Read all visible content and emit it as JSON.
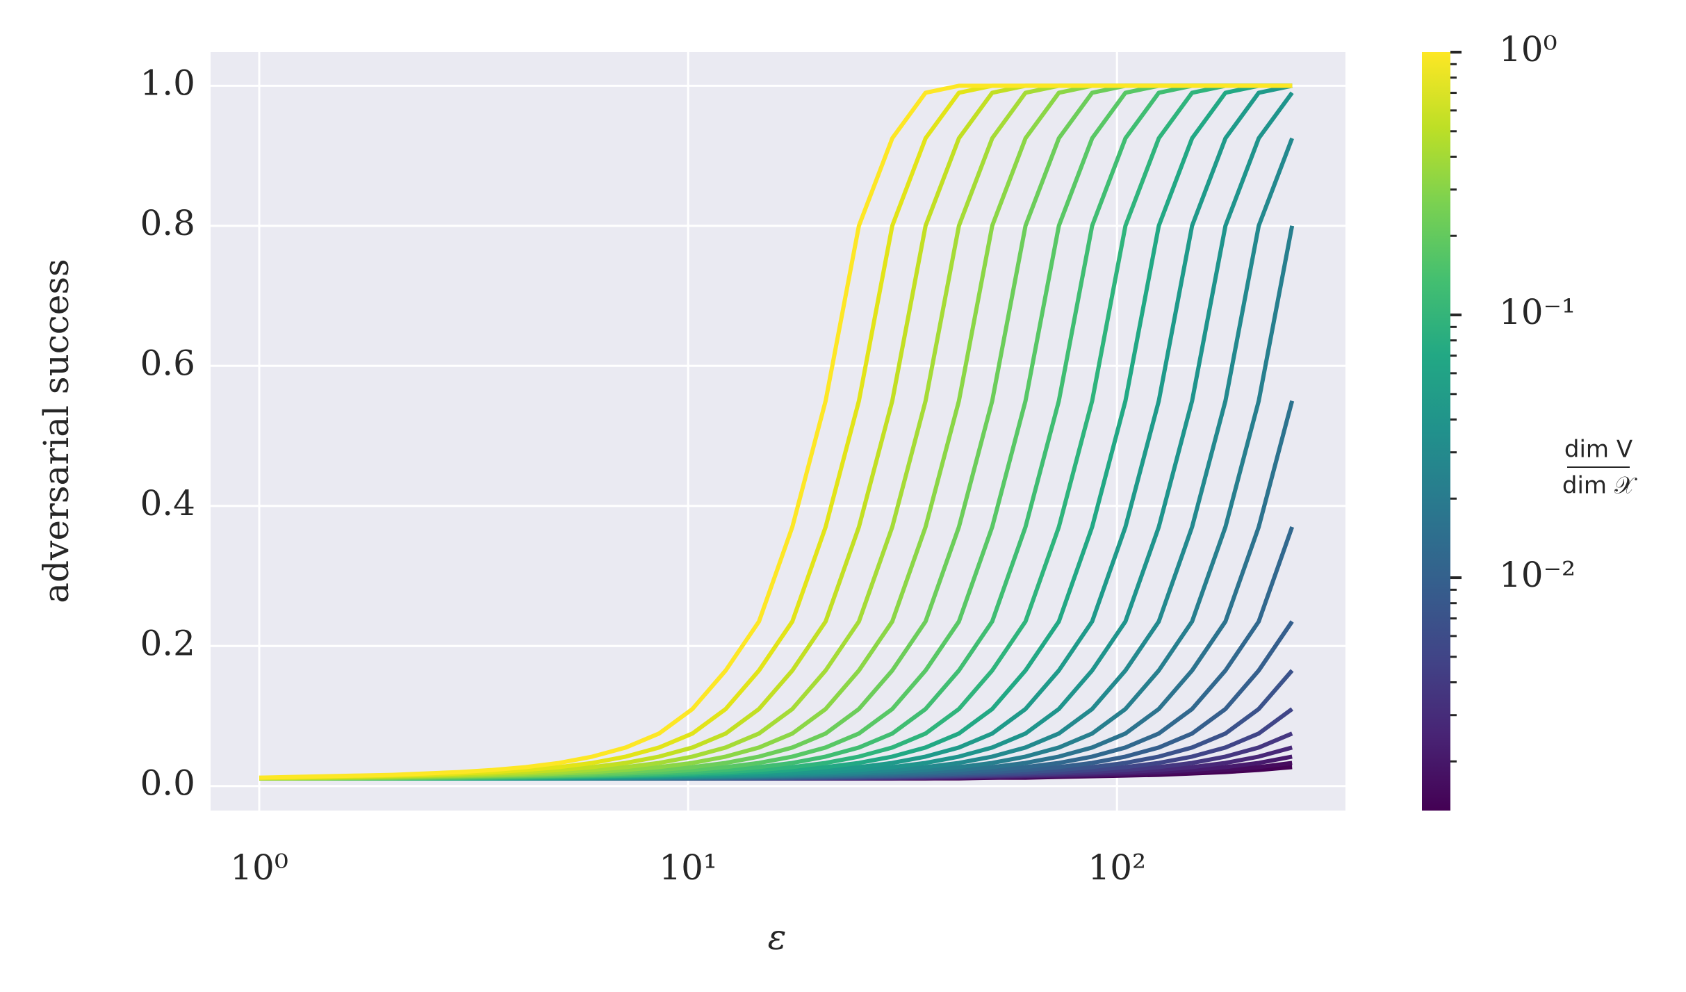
{
  "chart_data": {
    "type": "line",
    "x_label": "ε",
    "y_label": "adversarial success",
    "x_log": true,
    "grid": true,
    "xlim": [
      0.77,
      341
    ],
    "ylim": [
      -0.035,
      1.048
    ],
    "xticks": [
      {
        "value": 1,
        "label": "10⁰"
      },
      {
        "value": 10,
        "label": "10¹"
      },
      {
        "value": 100,
        "label": "10²"
      }
    ],
    "yticks": [
      {
        "value": 0,
        "label": "0.0"
      },
      0.2,
      0.4,
      0.6,
      0.8,
      {
        "value": 1,
        "label": "1.0"
      }
    ],
    "x": [
      1,
      1.196,
      1.43,
      1.71,
      2.045,
      2.446,
      2.925,
      3.498,
      4.183,
      5.002,
      5.982,
      7.154,
      8.555,
      10.231,
      12.235,
      14.631,
      17.497,
      20.924,
      25.022,
      29.923,
      35.784,
      42.793,
      51.175,
      61.198,
      73.184,
      87.518,
      104.66,
      125.16,
      149.67,
      178.99,
      214.04,
      256
    ],
    "series": [
      {
        "color": "#fde725",
        "values": [
          0.012,
          0.013,
          0.014,
          0.015,
          0.016,
          0.018,
          0.02,
          0.023,
          0.027,
          0.033,
          0.042,
          0.055,
          0.075,
          0.11,
          0.165,
          0.235,
          0.37,
          0.55,
          0.8,
          0.925,
          0.99,
          1,
          1,
          1,
          1,
          1,
          1,
          1,
          1,
          1,
          1,
          1
        ]
      },
      {
        "color": "#e2e418",
        "values": [
          0.012,
          0.012,
          0.013,
          0.014,
          0.015,
          0.016,
          0.018,
          0.02,
          0.023,
          0.027,
          0.033,
          0.042,
          0.055,
          0.075,
          0.11,
          0.165,
          0.235,
          0.37,
          0.55,
          0.8,
          0.925,
          0.99,
          1,
          1,
          1,
          1,
          1,
          1,
          1,
          1,
          1,
          1
        ]
      },
      {
        "color": "#c2df23",
        "values": [
          0.011,
          0.012,
          0.012,
          0.013,
          0.014,
          0.015,
          0.016,
          0.018,
          0.02,
          0.023,
          0.027,
          0.033,
          0.042,
          0.055,
          0.075,
          0.11,
          0.165,
          0.235,
          0.37,
          0.55,
          0.8,
          0.925,
          0.99,
          1,
          1,
          1,
          1,
          1,
          1,
          1,
          1,
          1
        ]
      },
      {
        "color": "#a5db36",
        "values": [
          0.011,
          0.011,
          0.012,
          0.012,
          0.013,
          0.014,
          0.015,
          0.016,
          0.018,
          0.02,
          0.023,
          0.027,
          0.033,
          0.042,
          0.055,
          0.075,
          0.11,
          0.165,
          0.235,
          0.37,
          0.55,
          0.8,
          0.925,
          0.99,
          1,
          1,
          1,
          1,
          1,
          1,
          1,
          1
        ]
      },
      {
        "color": "#8bd646",
        "values": [
          0.011,
          0.011,
          0.011,
          0.012,
          0.012,
          0.013,
          0.014,
          0.015,
          0.016,
          0.018,
          0.02,
          0.023,
          0.027,
          0.033,
          0.042,
          0.055,
          0.075,
          0.11,
          0.165,
          0.235,
          0.37,
          0.55,
          0.8,
          0.925,
          0.99,
          1,
          1,
          1,
          1,
          1,
          1,
          1
        ]
      },
      {
        "color": "#6ccd5a",
        "values": [
          0.011,
          0.011,
          0.011,
          0.011,
          0.012,
          0.012,
          0.013,
          0.014,
          0.015,
          0.016,
          0.018,
          0.02,
          0.023,
          0.027,
          0.033,
          0.042,
          0.055,
          0.075,
          0.11,
          0.165,
          0.235,
          0.37,
          0.55,
          0.8,
          0.925,
          0.99,
          1,
          1,
          1,
          1,
          1,
          1
        ]
      },
      {
        "color": "#58c765",
        "values": [
          0.011,
          0.011,
          0.011,
          0.011,
          0.011,
          0.012,
          0.012,
          0.013,
          0.014,
          0.015,
          0.016,
          0.018,
          0.02,
          0.023,
          0.027,
          0.033,
          0.042,
          0.055,
          0.075,
          0.11,
          0.165,
          0.235,
          0.37,
          0.55,
          0.8,
          0.925,
          0.99,
          1,
          1,
          1,
          1,
          1
        ]
      },
      {
        "color": "#40bd72",
        "values": [
          0.011,
          0.011,
          0.011,
          0.011,
          0.011,
          0.011,
          0.012,
          0.012,
          0.013,
          0.014,
          0.015,
          0.016,
          0.018,
          0.02,
          0.023,
          0.027,
          0.033,
          0.042,
          0.055,
          0.075,
          0.11,
          0.165,
          0.235,
          0.37,
          0.55,
          0.8,
          0.925,
          0.99,
          1,
          1,
          1,
          1
        ]
      },
      {
        "color": "#2fb47c",
        "values": [
          0.011,
          0.011,
          0.011,
          0.011,
          0.011,
          0.011,
          0.011,
          0.012,
          0.012,
          0.013,
          0.014,
          0.015,
          0.016,
          0.018,
          0.02,
          0.023,
          0.027,
          0.033,
          0.042,
          0.055,
          0.075,
          0.11,
          0.165,
          0.235,
          0.37,
          0.55,
          0.8,
          0.925,
          0.99,
          1,
          1,
          1
        ]
      },
      {
        "color": "#22a884",
        "values": [
          0.011,
          0.011,
          0.011,
          0.011,
          0.011,
          0.011,
          0.011,
          0.011,
          0.012,
          0.012,
          0.013,
          0.014,
          0.015,
          0.016,
          0.018,
          0.02,
          0.023,
          0.027,
          0.033,
          0.042,
          0.055,
          0.075,
          0.11,
          0.165,
          0.235,
          0.37,
          0.55,
          0.8,
          0.925,
          0.99,
          1,
          1
        ]
      },
      {
        "color": "#1f9a8a",
        "values": [
          0.011,
          0.011,
          0.011,
          0.011,
          0.011,
          0.011,
          0.011,
          0.011,
          0.011,
          0.012,
          0.012,
          0.013,
          0.014,
          0.015,
          0.016,
          0.018,
          0.02,
          0.023,
          0.027,
          0.033,
          0.042,
          0.055,
          0.075,
          0.11,
          0.165,
          0.235,
          0.37,
          0.55,
          0.8,
          0.925,
          0.99,
          1
        ]
      },
      {
        "color": "#1f948c",
        "values": [
          0.011,
          0.011,
          0.011,
          0.011,
          0.011,
          0.011,
          0.011,
          0.011,
          0.011,
          0.011,
          0.012,
          0.012,
          0.013,
          0.014,
          0.015,
          0.016,
          0.018,
          0.02,
          0.023,
          0.027,
          0.033,
          0.042,
          0.055,
          0.075,
          0.11,
          0.165,
          0.235,
          0.37,
          0.55,
          0.8,
          0.925,
          0.99
        ]
      },
      {
        "color": "#23898e",
        "values": [
          0.011,
          0.011,
          0.011,
          0.011,
          0.011,
          0.011,
          0.011,
          0.011,
          0.011,
          0.011,
          0.011,
          0.012,
          0.012,
          0.013,
          0.014,
          0.015,
          0.016,
          0.018,
          0.02,
          0.023,
          0.027,
          0.033,
          0.042,
          0.055,
          0.075,
          0.11,
          0.165,
          0.235,
          0.37,
          0.55,
          0.8,
          0.925
        ]
      },
      {
        "color": "#277f8e",
        "values": [
          0.011,
          0.011,
          0.011,
          0.011,
          0.011,
          0.011,
          0.011,
          0.011,
          0.011,
          0.011,
          0.011,
          0.011,
          0.012,
          0.012,
          0.013,
          0.014,
          0.015,
          0.016,
          0.018,
          0.02,
          0.023,
          0.027,
          0.033,
          0.042,
          0.055,
          0.075,
          0.11,
          0.165,
          0.235,
          0.37,
          0.55,
          0.8
        ]
      },
      {
        "color": "#2c738e",
        "values": [
          0.011,
          0.011,
          0.011,
          0.011,
          0.011,
          0.011,
          0.011,
          0.011,
          0.011,
          0.011,
          0.011,
          0.011,
          0.011,
          0.012,
          0.012,
          0.013,
          0.014,
          0.015,
          0.016,
          0.018,
          0.02,
          0.023,
          0.027,
          0.033,
          0.042,
          0.055,
          0.075,
          0.11,
          0.165,
          0.235,
          0.37,
          0.55
        ]
      },
      {
        "color": "#31688e",
        "values": [
          0.011,
          0.011,
          0.011,
          0.011,
          0.011,
          0.011,
          0.011,
          0.011,
          0.011,
          0.011,
          0.011,
          0.011,
          0.011,
          0.011,
          0.012,
          0.012,
          0.013,
          0.014,
          0.015,
          0.016,
          0.018,
          0.02,
          0.023,
          0.027,
          0.033,
          0.042,
          0.055,
          0.075,
          0.11,
          0.165,
          0.235,
          0.37
        ]
      },
      {
        "color": "#355f8d",
        "values": [
          0.011,
          0.011,
          0.011,
          0.011,
          0.011,
          0.011,
          0.011,
          0.011,
          0.011,
          0.011,
          0.011,
          0.011,
          0.011,
          0.011,
          0.011,
          0.012,
          0.012,
          0.013,
          0.014,
          0.015,
          0.016,
          0.018,
          0.02,
          0.023,
          0.027,
          0.033,
          0.042,
          0.055,
          0.075,
          0.11,
          0.165,
          0.235
        ]
      },
      {
        "color": "#3b528b",
        "values": [
          0.011,
          0.011,
          0.011,
          0.011,
          0.011,
          0.011,
          0.011,
          0.011,
          0.011,
          0.011,
          0.011,
          0.011,
          0.011,
          0.011,
          0.011,
          0.011,
          0.012,
          0.012,
          0.013,
          0.014,
          0.015,
          0.016,
          0.018,
          0.02,
          0.023,
          0.027,
          0.033,
          0.042,
          0.055,
          0.075,
          0.11,
          0.165
        ]
      },
      {
        "color": "#404588",
        "values": [
          0.011,
          0.011,
          0.011,
          0.011,
          0.011,
          0.011,
          0.011,
          0.011,
          0.011,
          0.011,
          0.011,
          0.011,
          0.011,
          0.011,
          0.011,
          0.011,
          0.011,
          0.012,
          0.012,
          0.013,
          0.014,
          0.015,
          0.016,
          0.018,
          0.02,
          0.023,
          0.027,
          0.033,
          0.042,
          0.055,
          0.075,
          0.11
        ]
      },
      {
        "color": "#453781",
        "values": [
          0.011,
          0.011,
          0.011,
          0.011,
          0.011,
          0.011,
          0.011,
          0.011,
          0.011,
          0.011,
          0.011,
          0.011,
          0.011,
          0.011,
          0.011,
          0.011,
          0.011,
          0.011,
          0.012,
          0.012,
          0.013,
          0.014,
          0.015,
          0.016,
          0.018,
          0.02,
          0.023,
          0.027,
          0.033,
          0.042,
          0.055,
          0.075
        ]
      },
      {
        "color": "#482878",
        "values": [
          0.011,
          0.011,
          0.011,
          0.011,
          0.011,
          0.011,
          0.011,
          0.011,
          0.011,
          0.011,
          0.011,
          0.011,
          0.011,
          0.011,
          0.011,
          0.011,
          0.011,
          0.011,
          0.011,
          0.012,
          0.012,
          0.013,
          0.014,
          0.015,
          0.016,
          0.018,
          0.02,
          0.023,
          0.027,
          0.033,
          0.042,
          0.055
        ]
      },
      {
        "color": "#471a6d",
        "values": [
          0.011,
          0.011,
          0.011,
          0.011,
          0.011,
          0.011,
          0.011,
          0.011,
          0.011,
          0.011,
          0.011,
          0.011,
          0.011,
          0.011,
          0.011,
          0.011,
          0.011,
          0.011,
          0.011,
          0.011,
          0.012,
          0.012,
          0.013,
          0.014,
          0.015,
          0.016,
          0.018,
          0.02,
          0.023,
          0.027,
          0.033,
          0.042
        ]
      },
      {
        "color": "#460b5e",
        "values": [
          0.011,
          0.011,
          0.011,
          0.011,
          0.011,
          0.011,
          0.011,
          0.011,
          0.011,
          0.011,
          0.011,
          0.011,
          0.011,
          0.011,
          0.011,
          0.011,
          0.011,
          0.011,
          0.011,
          0.011,
          0.011,
          0.012,
          0.012,
          0.013,
          0.014,
          0.015,
          0.016,
          0.018,
          0.02,
          0.023,
          0.027,
          0.033
        ]
      },
      {
        "color": "#440154",
        "values": [
          0.011,
          0.011,
          0.011,
          0.011,
          0.011,
          0.011,
          0.011,
          0.011,
          0.011,
          0.011,
          0.011,
          0.011,
          0.011,
          0.011,
          0.011,
          0.011,
          0.011,
          0.011,
          0.011,
          0.011,
          0.011,
          0.011,
          0.012,
          0.012,
          0.013,
          0.014,
          0.015,
          0.016,
          0.018,
          0.02,
          0.023,
          0.027
        ]
      }
    ],
    "colorbar": {
      "clim": [
        0.0013,
        1
      ],
      "log": true,
      "colormap": [
        "#440154",
        "#482475",
        "#414487",
        "#355f8d",
        "#2a788e",
        "#21918c",
        "#22a884",
        "#44bf70",
        "#7ad151",
        "#bddf26",
        "#fde725"
      ],
      "ticks": [
        {
          "value": 1,
          "label": "10⁰"
        },
        {
          "value": 0.1,
          "label": "10⁻¹"
        },
        {
          "value": 0.01,
          "label": "10⁻²"
        }
      ],
      "minor_ticks": [
        0.002,
        0.003,
        0.004,
        0.005,
        0.006,
        0.007,
        0.008,
        0.009,
        0.02,
        0.03,
        0.04,
        0.05,
        0.06,
        0.07,
        0.08,
        0.09,
        0.2,
        0.3,
        0.4,
        0.5,
        0.6,
        0.7,
        0.8,
        0.9
      ],
      "label": {
        "numerator": "dim V",
        "denominator": "dim 𝒳"
      }
    }
  }
}
